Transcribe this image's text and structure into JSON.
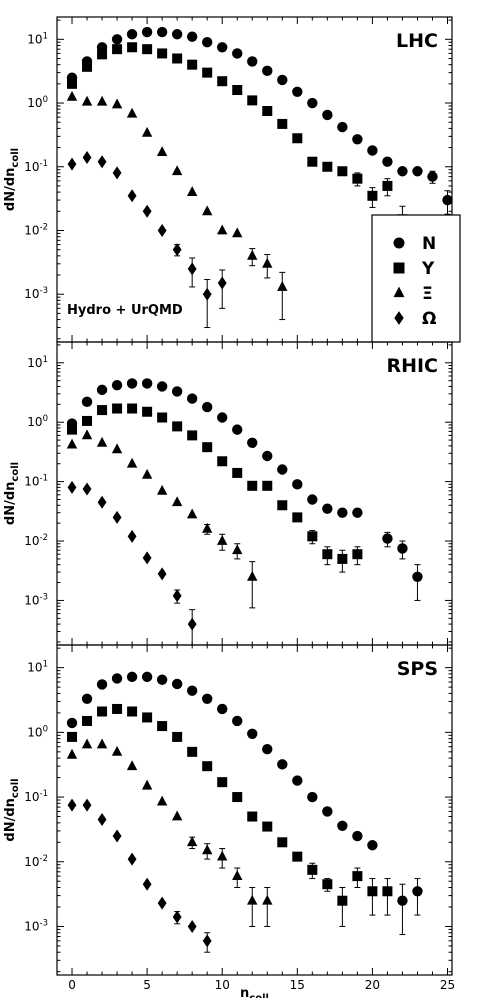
{
  "chart_data": [
    {
      "type": "scatter",
      "panel_label": "LHC",
      "ylabel": "dN/dn_coll",
      "xlabel": "",
      "xlim": [
        -1,
        25.3
      ],
      "ylim_log10": [
        -3.75,
        1.35
      ],
      "yscale": "log",
      "annotation": "Hydro + UrQMD",
      "legend": {
        "placement": "bottom-right",
        "entries": [
          {
            "marker": "circle",
            "label": "N"
          },
          {
            "marker": "square",
            "label": "Y"
          },
          {
            "marker": "triangle",
            "label": "Ξ"
          },
          {
            "marker": "diamond",
            "label": "Ω"
          }
        ]
      },
      "series": [
        {
          "name": "N",
          "marker": "circle",
          "x": [
            0,
            1,
            2,
            3,
            4,
            5,
            6,
            7,
            8,
            9,
            10,
            11,
            12,
            13,
            14,
            15,
            16,
            17,
            18,
            19,
            20,
            21,
            22,
            23,
            24,
            25
          ],
          "y": [
            2.5,
            4.5,
            7.5,
            10,
            12,
            13,
            13,
            12,
            11,
            9,
            7.5,
            6,
            4.5,
            3.2,
            2.3,
            1.5,
            1.0,
            0.65,
            0.42,
            0.27,
            0.18,
            0.12,
            0.085,
            0.085,
            0.07,
            0.03
          ],
          "err": [
            0,
            0,
            0,
            0,
            0,
            0,
            0,
            0,
            0,
            0,
            0,
            0,
            0,
            0,
            0,
            0,
            0,
            0,
            0,
            0,
            0,
            0,
            0,
            0,
            0.015,
            0.012
          ]
        },
        {
          "name": "Y",
          "x": [
            0,
            1,
            2,
            3,
            4,
            5,
            6,
            7,
            8,
            9,
            10,
            11,
            12,
            13,
            14,
            15,
            16,
            17,
            18,
            19,
            20,
            21,
            22
          ],
          "y": [
            2.0,
            3.7,
            5.8,
            7.0,
            7.5,
            7.0,
            6.0,
            5.0,
            4.0,
            3.0,
            2.2,
            1.6,
            1.1,
            0.75,
            0.47,
            0.28,
            0.12,
            0.1,
            0.085,
            0.065,
            0.035,
            0.05,
            0.015
          ],
          "err": [
            0,
            0,
            0,
            0,
            0,
            0,
            0,
            0,
            0,
            0,
            0,
            0,
            0,
            0,
            0,
            0,
            0,
            0,
            0,
            0.015,
            0.012,
            0.015,
            0.009
          ]
        },
        {
          "name": "Ξ",
          "x": [
            0,
            1,
            2,
            3,
            4,
            5,
            6,
            7,
            8,
            9,
            10,
            11,
            12,
            13,
            14
          ],
          "y": [
            1.25,
            1.05,
            1.05,
            0.95,
            0.68,
            0.34,
            0.17,
            0.085,
            0.04,
            0.02,
            0.01,
            0.009,
            0.004,
            0.003,
            0.0013
          ],
          "err": [
            0,
            0,
            0,
            0,
            0,
            0,
            0,
            0,
            0,
            0,
            0,
            0,
            0.0012,
            0.0012,
            0.0009
          ]
        },
        {
          "name": "Ω",
          "x": [
            0,
            1,
            2,
            3,
            4,
            5,
            6,
            7,
            8,
            9,
            10
          ],
          "y": [
            0.11,
            0.14,
            0.12,
            0.08,
            0.035,
            0.02,
            0.01,
            0.005,
            0.0025,
            0.001,
            0.0015
          ],
          "err": [
            0,
            0,
            0,
            0,
            0,
            0,
            0,
            0.001,
            0.0012,
            0.0007,
            0.0009
          ]
        }
      ]
    },
    {
      "type": "scatter",
      "panel_label": "RHIC",
      "ylabel": "dN/dn_coll",
      "xlabel": "",
      "xlim": [
        -1,
        25.3
      ],
      "ylim_log10": [
        -3.75,
        1.35
      ],
      "yscale": "log",
      "series": [
        {
          "name": "N",
          "x": [
            0,
            1,
            2,
            3,
            4,
            5,
            6,
            7,
            8,
            9,
            10,
            11,
            12,
            13,
            14,
            15,
            16,
            17,
            18,
            19,
            21,
            22,
            23
          ],
          "y": [
            0.95,
            2.2,
            3.5,
            4.2,
            4.5,
            4.5,
            4.0,
            3.3,
            2.5,
            1.8,
            1.2,
            0.75,
            0.45,
            0.27,
            0.16,
            0.09,
            0.05,
            0.035,
            0.03,
            0.03,
            0.011,
            0.0075,
            0.0025
          ],
          "err": [
            0,
            0,
            0,
            0,
            0,
            0,
            0,
            0,
            0,
            0,
            0,
            0,
            0,
            0,
            0,
            0,
            0,
            0,
            0,
            0,
            0.003,
            0.0025,
            0.0015
          ]
        },
        {
          "name": "Y",
          "x": [
            0,
            1,
            2,
            3,
            4,
            5,
            6,
            7,
            8,
            9,
            10,
            11,
            12,
            13,
            14,
            15,
            16,
            17,
            18,
            19
          ],
          "y": [
            0.75,
            1.05,
            1.6,
            1.7,
            1.7,
            1.5,
            1.2,
            0.85,
            0.6,
            0.38,
            0.22,
            0.14,
            0.085,
            0.085,
            0.04,
            0.025,
            0.012,
            0.006,
            0.005,
            0.006
          ],
          "err": [
            0,
            0,
            0,
            0,
            0,
            0,
            0,
            0,
            0,
            0,
            0,
            0,
            0,
            0,
            0,
            0,
            0.003,
            0.002,
            0.002,
            0.002
          ]
        },
        {
          "name": "Ξ",
          "x": [
            0,
            1,
            2,
            3,
            4,
            5,
            6,
            7,
            8,
            9,
            10,
            11,
            12
          ],
          "y": [
            0.42,
            0.6,
            0.45,
            0.35,
            0.2,
            0.13,
            0.07,
            0.045,
            0.028,
            0.016,
            0.01,
            0.007,
            0.0025
          ],
          "err": [
            0,
            0,
            0,
            0,
            0,
            0,
            0,
            0,
            0,
            0.003,
            0.003,
            0.002,
            0.002
          ]
        },
        {
          "name": "Ω",
          "x": [
            0,
            1,
            2,
            3,
            4,
            5,
            6,
            7,
            8
          ],
          "y": [
            0.08,
            0.075,
            0.045,
            0.025,
            0.012,
            0.0052,
            0.0028,
            0.0012,
            0.0004
          ],
          "err": [
            0,
            0,
            0,
            0,
            0,
            0,
            0,
            0.0003,
            0.0003
          ]
        }
      ]
    },
    {
      "type": "scatter",
      "panel_label": "SPS",
      "ylabel": "dN/dn_coll",
      "xlabel": "n_coll",
      "xlim": [
        -1,
        25.3
      ],
      "ylim_log10": [
        -3.75,
        1.35
      ],
      "yscale": "log",
      "xticks": [
        0,
        5,
        10,
        15,
        20,
        25
      ],
      "series": [
        {
          "name": "N",
          "x": [
            0,
            1,
            2,
            3,
            4,
            5,
            6,
            7,
            8,
            9,
            10,
            11,
            12,
            13,
            14,
            15,
            16,
            17,
            18,
            19,
            20,
            22,
            23
          ],
          "y": [
            1.4,
            3.3,
            5.5,
            6.8,
            7.2,
            7.2,
            6.5,
            5.6,
            4.4,
            3.3,
            2.3,
            1.5,
            0.95,
            0.55,
            0.32,
            0.18,
            0.1,
            0.06,
            0.036,
            0.025,
            0.018,
            0.0025,
            0.0035
          ],
          "err": [
            0,
            0,
            0,
            0,
            0,
            0,
            0,
            0,
            0,
            0,
            0,
            0,
            0,
            0,
            0,
            0,
            0,
            0,
            0,
            0,
            0,
            0.002,
            0.002
          ]
        },
        {
          "name": "Y",
          "x": [
            0,
            1,
            2,
            3,
            4,
            5,
            6,
            7,
            8,
            9,
            10,
            11,
            12,
            13,
            14,
            15,
            16,
            17,
            18,
            19,
            20,
            21
          ],
          "y": [
            0.85,
            1.5,
            2.1,
            2.3,
            2.1,
            1.7,
            1.25,
            0.85,
            0.5,
            0.3,
            0.17,
            0.1,
            0.05,
            0.035,
            0.02,
            0.012,
            0.0075,
            0.0045,
            0.0025,
            0.006,
            0.0035,
            0.0035
          ],
          "err": [
            0,
            0,
            0,
            0,
            0,
            0,
            0,
            0,
            0,
            0,
            0,
            0,
            0,
            0,
            0,
            0,
            0.002,
            0.001,
            0.0015,
            0.002,
            0.002,
            0.002
          ]
        },
        {
          "name": "Ξ",
          "x": [
            0,
            1,
            2,
            3,
            4,
            5,
            6,
            7,
            8,
            9,
            10,
            11,
            12,
            13
          ],
          "y": [
            0.45,
            0.65,
            0.65,
            0.5,
            0.3,
            0.15,
            0.085,
            0.05,
            0.02,
            0.015,
            0.012,
            0.006,
            0.0025,
            0.0025
          ],
          "err": [
            0,
            0,
            0,
            0,
            0,
            0,
            0,
            0,
            0.004,
            0.004,
            0.004,
            0.002,
            0.0015,
            0.0015
          ]
        },
        {
          "name": "Ω",
          "x": [
            0,
            1,
            2,
            3,
            4,
            5,
            6,
            7,
            8,
            9
          ],
          "y": [
            0.075,
            0.075,
            0.045,
            0.025,
            0.011,
            0.0045,
            0.0023,
            0.0014,
            0.001,
            0.0006
          ],
          "err": [
            0,
            0,
            0,
            0,
            0,
            0,
            0,
            0.0003,
            0,
            0.0002
          ]
        }
      ]
    }
  ]
}
